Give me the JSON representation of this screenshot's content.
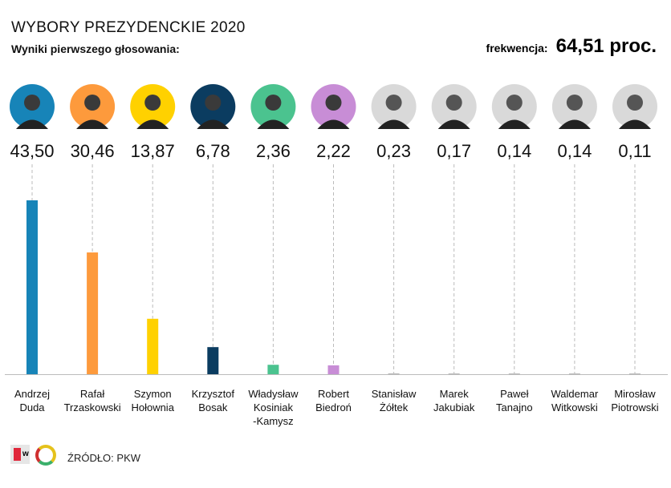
{
  "title": "WYBORY PREZYDENCKIE 2020",
  "subtitle": "Wyniki pierwszego głosowania:",
  "turnout": {
    "label": "frekwencja:",
    "value": "64,51 proc."
  },
  "source": "ŹRÓDŁO: PKW",
  "logos": [
    "w",
    "Q"
  ],
  "chart_data": {
    "type": "bar",
    "unit": "%",
    "categories": [
      [
        "Andrzej",
        "Duda"
      ],
      [
        "Rafał",
        "Trzaskowski"
      ],
      [
        "Szymon",
        "Hołownia"
      ],
      [
        "Krzysztof",
        "Bosak"
      ],
      [
        "Władysław",
        "Kosiniak",
        "-Kamysz"
      ],
      [
        "Robert",
        "Biedroń"
      ],
      [
        "Stanisław",
        "Żółtek"
      ],
      [
        "Marek",
        "Jakubiak"
      ],
      [
        "Paweł",
        "Tanajno"
      ],
      [
        "Waldemar",
        "Witkowski"
      ],
      [
        "Mirosław",
        "Piotrowski"
      ]
    ],
    "values": [
      43.5,
      30.46,
      13.87,
      6.78,
      2.36,
      2.22,
      0.23,
      0.17,
      0.14,
      0.14,
      0.11
    ],
    "value_labels": [
      "43,50",
      "30,46",
      "13,87",
      "6,78",
      "2,36",
      "2,22",
      "0,23",
      "0,17",
      "0,14",
      "0,14",
      "0,11"
    ],
    "colors": [
      "#1784b8",
      "#fd9a3c",
      "#ffd100",
      "#0b3c60",
      "#4bc38f",
      "#c88dd6",
      "#aaaaaa",
      "#aaaaaa",
      "#aaaaaa",
      "#aaaaaa",
      "#aaaaaa"
    ],
    "ylim": [
      0,
      45
    ],
    "grid": false
  }
}
